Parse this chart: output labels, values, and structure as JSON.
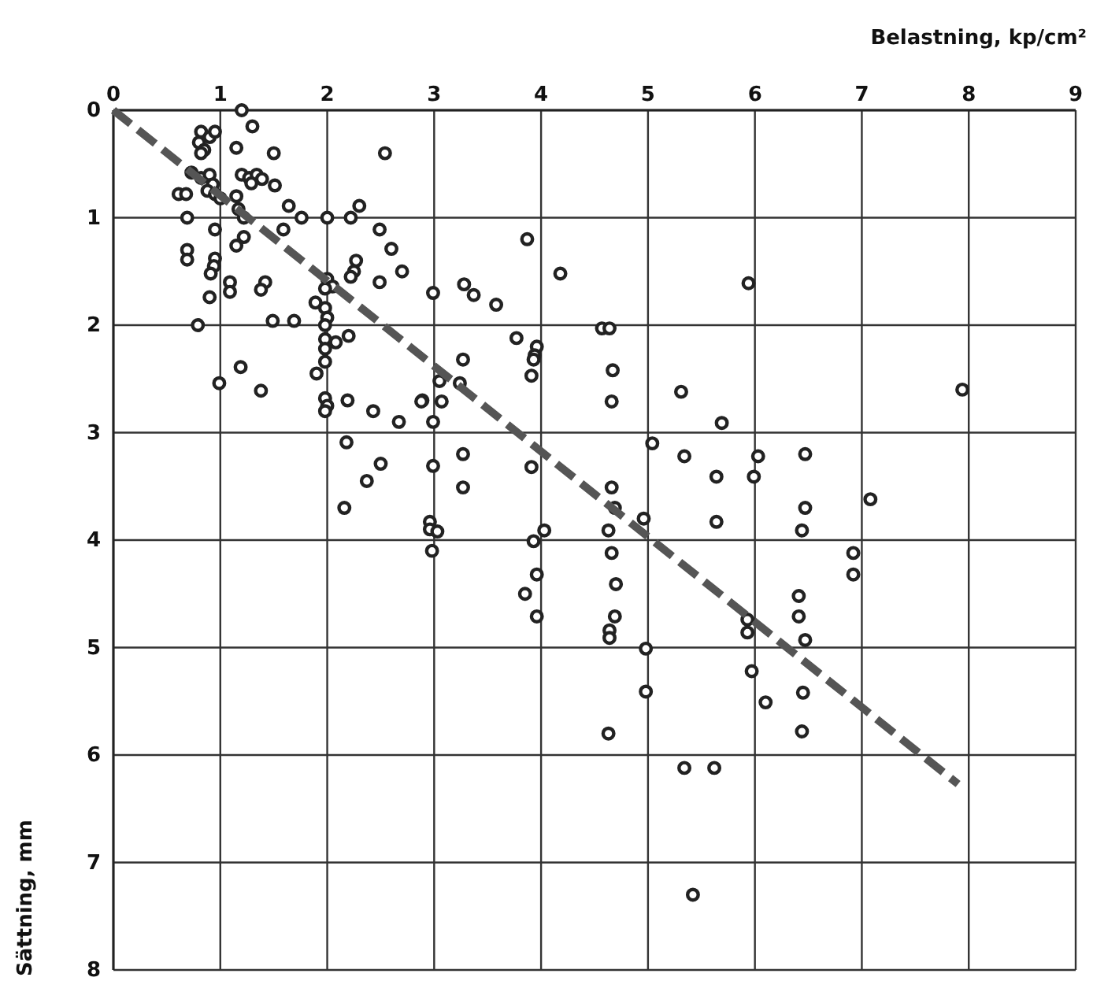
{
  "chart_data": {
    "type": "scatter",
    "xlabel": "Belastning, kp/cm²",
    "ylabel": "Sättning, mm",
    "xlim": [
      0,
      9
    ],
    "ylim": [
      8,
      0
    ],
    "xticks": [
      0,
      1,
      2,
      3,
      4,
      5,
      6,
      7,
      8,
      9
    ],
    "yticks": [
      0,
      1,
      2,
      3,
      4,
      5,
      6,
      7,
      8
    ],
    "grid": true,
    "marker": "circle",
    "series": [
      {
        "color": "#222222",
        "x": [
          1.2,
          1.3,
          0.82,
          0.8,
          0.9,
          0.95,
          0.85,
          0.82,
          1.15,
          1.5,
          2.54,
          0.73,
          0.82,
          0.9,
          0.93,
          0.88,
          1.2,
          1.27,
          1.34,
          1.39,
          1.29,
          1.51,
          0.61,
          0.68,
          0.95,
          1.0,
          1.15,
          1.64,
          1.76,
          2.0,
          2.22,
          2.3,
          0.69,
          1.22,
          1.17,
          0.95,
          1.59,
          2.49,
          2.6,
          0.69,
          0.69,
          1.22,
          1.15,
          0.95,
          0.94,
          0.91,
          2.7,
          2.25,
          2.27,
          2.22,
          2.49,
          1.42,
          1.38,
          1.09,
          1.09,
          2.0,
          2.05,
          1.98,
          0.9,
          2.99,
          1.89,
          1.98,
          2.0,
          1.98,
          0.79,
          1.49,
          1.69,
          1.98,
          2.08,
          2.2,
          1.98,
          1.98,
          1.19,
          1.9,
          0.99,
          1.38,
          1.98,
          2.0,
          1.98,
          2.19,
          2.43,
          2.89,
          2.99,
          2.67,
          2.18,
          2.5,
          2.37,
          2.99,
          2.16,
          2.96,
          2.96,
          2.98,
          3.03,
          3.87,
          4.18,
          5.94,
          3.28,
          3.37,
          3.58,
          3.77,
          4.57,
          4.64,
          3.96,
          3.94,
          3.93,
          3.91,
          4.67,
          3.27,
          3.05,
          3.24,
          2.88,
          3.07,
          4.66,
          5.31,
          5.69,
          5.04,
          5.34,
          3.27,
          3.91,
          6.03,
          5.99,
          5.64,
          3.27,
          4.66,
          5.64,
          4.03,
          3.93,
          4.69,
          4.63,
          4.96,
          4.66,
          3.96,
          3.85,
          4.7,
          3.96,
          4.69,
          4.64,
          4.64,
          5.93,
          5.93,
          4.98,
          5.97,
          6.1,
          4.98,
          4.63,
          5.34,
          5.62,
          5.42,
          6.47,
          6.44,
          7.08,
          6.92,
          6.92,
          6.41,
          6.41,
          6.47,
          6.45,
          6.44,
          7.94,
          6.47
        ],
        "values": [
          0,
          0.15,
          0.2,
          0.3,
          0.25,
          0.2,
          0.37,
          0.4,
          0.35,
          0.4,
          0.4,
          0.58,
          0.63,
          0.6,
          0.69,
          0.75,
          0.6,
          0.63,
          0.6,
          0.64,
          0.68,
          0.7,
          0.78,
          0.78,
          0.78,
          0.82,
          0.8,
          0.89,
          1.0,
          1.0,
          1.0,
          0.89,
          1.0,
          1.0,
          0.92,
          1.11,
          1.11,
          1.11,
          1.29,
          1.3,
          1.39,
          1.18,
          1.26,
          1.38,
          1.45,
          1.52,
          1.5,
          1.5,
          1.4,
          1.55,
          1.6,
          1.6,
          1.67,
          1.6,
          1.69,
          1.57,
          1.64,
          1.66,
          1.74,
          1.7,
          1.79,
          1.84,
          1.93,
          2.0,
          2.0,
          1.96,
          1.96,
          2.13,
          2.16,
          2.1,
          2.22,
          2.34,
          2.39,
          2.45,
          2.54,
          2.61,
          2.68,
          2.75,
          2.8,
          2.7,
          2.8,
          2.7,
          2.9,
          2.9,
          3.09,
          3.29,
          3.45,
          3.31,
          3.7,
          3.83,
          3.9,
          4.1,
          3.92,
          1.2,
          1.52,
          1.61,
          1.62,
          1.72,
          1.81,
          2.12,
          2.03,
          2.03,
          2.2,
          2.28,
          2.32,
          2.47,
          2.42,
          2.32,
          2.52,
          2.54,
          2.71,
          2.71,
          2.71,
          2.62,
          2.91,
          3.1,
          3.22,
          3.2,
          3.32,
          3.22,
          3.41,
          3.41,
          3.51,
          3.51,
          3.83,
          3.91,
          4.01,
          3.7,
          3.91,
          3.8,
          4.12,
          4.32,
          4.5,
          4.41,
          4.71,
          4.71,
          4.84,
          4.91,
          4.74,
          4.86,
          5.01,
          5.22,
          5.51,
          5.41,
          5.8,
          6.12,
          6.12,
          7.3,
          3.7,
          3.91,
          3.62,
          4.12,
          4.32,
          4.52,
          4.71,
          4.93,
          5.42,
          5.78,
          2.6,
          3.2
        ]
      },
      {
        "type": "line",
        "color": "#555555",
        "line_style": "dashed",
        "marker": "none",
        "x": [
          0,
          7.9
        ],
        "values": [
          0,
          6.27
        ]
      }
    ]
  }
}
